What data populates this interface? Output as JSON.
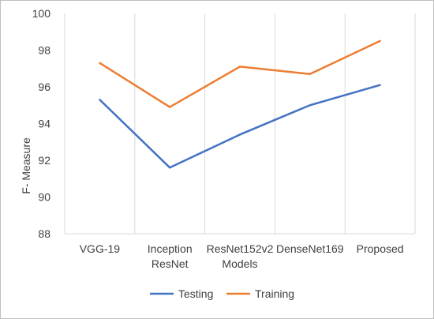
{
  "chart_data": {
    "type": "line",
    "categories": [
      "VGG-19",
      "Inception ResNet",
      "ResNet152v2",
      "DenseNet169",
      "Proposed"
    ],
    "category_lines": [
      [
        "VGG-19"
      ],
      [
        "Inception",
        "ResNet"
      ],
      [
        "ResNet152v2",
        "Models"
      ],
      [
        "DenseNet169"
      ],
      [
        "Proposed"
      ]
    ],
    "series": [
      {
        "name": "Testing",
        "color": "#4472C4",
        "values": [
          95.3,
          91.6,
          93.4,
          95.0,
          96.1
        ]
      },
      {
        "name": "Training",
        "color": "#ED7D31",
        "values": [
          97.3,
          94.9,
          97.1,
          96.7,
          98.5
        ]
      }
    ],
    "xlabel": "Models",
    "ylabel": "F- Measure",
    "ylim": [
      88,
      100
    ],
    "yticks": [
      88,
      90,
      92,
      94,
      96,
      98,
      100
    ],
    "grid": "vertical category gridlines",
    "legend": "bottom-center",
    "gridline_color": "#d9d9d9"
  }
}
